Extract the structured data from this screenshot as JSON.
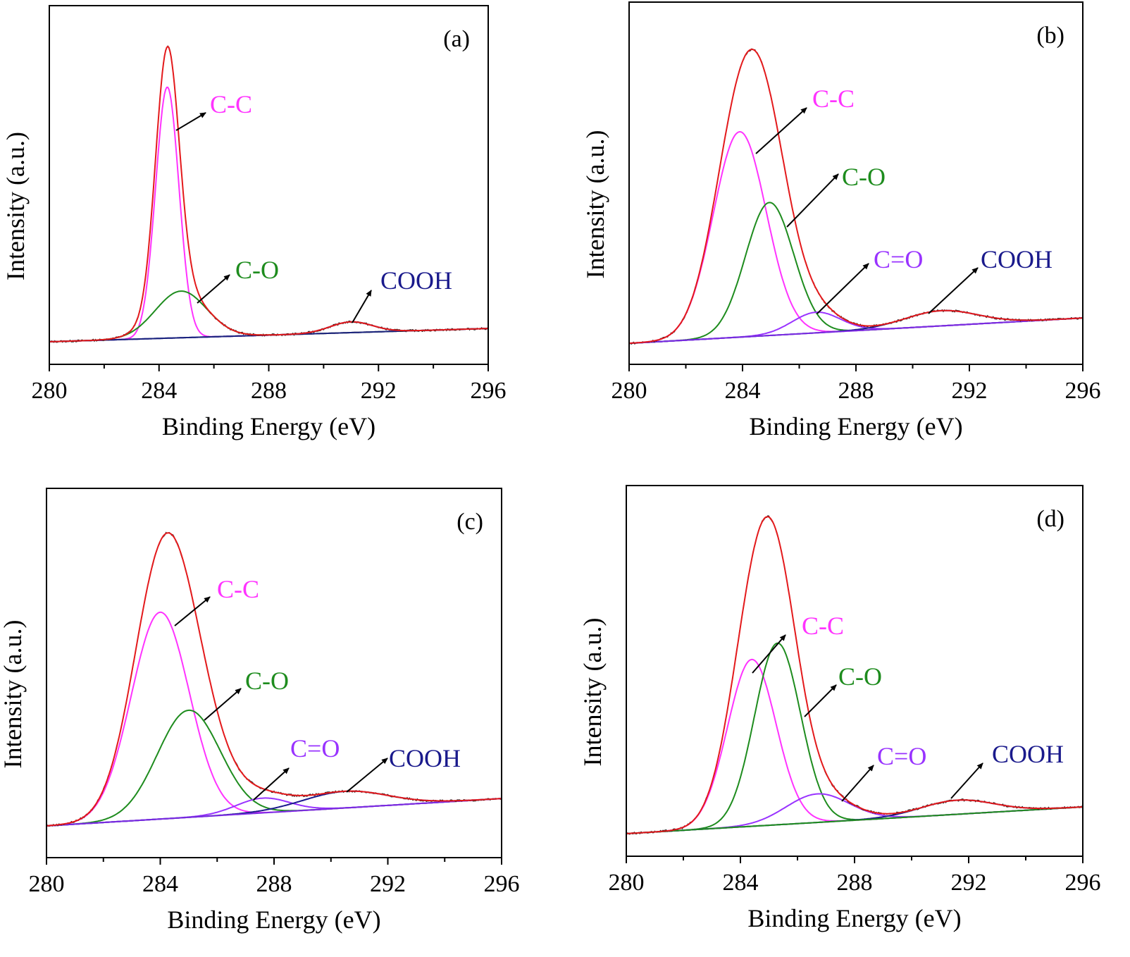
{
  "chart_data": [
    {
      "type": "line",
      "panel_label": "(a)",
      "xlabel": "Binding Energy (eV)",
      "ylabel": "Intensity (a.u.)",
      "xlim": [
        280,
        296
      ],
      "ylim": [
        0,
        1
      ],
      "xticks": [
        280,
        284,
        288,
        292,
        296
      ],
      "xticks_minor": [
        282,
        286,
        290,
        294
      ],
      "grid": false,
      "baseline": {
        "x": [
          280,
          296
        ],
        "y": [
          0.063,
          0.1
        ],
        "color": "#1a237e"
      },
      "envelope": {
        "color": "#e41a1c"
      },
      "components": [
        {
          "name": "C-C",
          "center": 284.3,
          "height": 0.7,
          "fwhm": 1.0,
          "color": "#ff33ff"
        },
        {
          "name": "C-O",
          "center": 284.8,
          "height": 0.13,
          "fwhm": 2.2,
          "color": "#1e8c1e"
        },
        {
          "name": "COOH",
          "center": 291.0,
          "height": 0.03,
          "fwhm": 1.8,
          "color": "#1a1a8c"
        }
      ]
    },
    {
      "type": "line",
      "panel_label": "(b)",
      "xlabel": "Binding Energy (eV)",
      "ylabel": "Intensity (a.u.)",
      "xlim": [
        280,
        296
      ],
      "ylim": [
        0,
        1
      ],
      "xticks": [
        280,
        284,
        288,
        292,
        296
      ],
      "xticks_minor": [
        282,
        286,
        290,
        294
      ],
      "grid": false,
      "baseline": {
        "x": [
          280,
          296
        ],
        "y": [
          0.058,
          0.128
        ],
        "color": "#7a2be2"
      },
      "envelope": {
        "color": "#e41a1c"
      },
      "components": [
        {
          "name": "C-C",
          "center": 283.9,
          "height": 0.567,
          "fwhm": 2.2,
          "color": "#ff33ff"
        },
        {
          "name": "C-O",
          "center": 284.95,
          "height": 0.367,
          "fwhm": 2.0,
          "color": "#1e8c1e"
        },
        {
          "name": "C=O",
          "center": 286.6,
          "height": 0.057,
          "fwhm": 2.0,
          "color": "#9933ff"
        },
        {
          "name": "COOH",
          "center": 291.0,
          "height": 0.042,
          "fwhm": 3.0,
          "color": "#1a1a8c"
        }
      ]
    },
    {
      "type": "line",
      "panel_label": "(c)",
      "xlabel": "Binding Energy (eV)",
      "ylabel": "Intensity (a.u.)",
      "xlim": [
        280,
        296
      ],
      "ylim": [
        0,
        1
      ],
      "xticks": [
        280,
        284,
        288,
        292,
        296
      ],
      "xticks_minor": [
        282,
        286,
        290,
        294
      ],
      "grid": false,
      "baseline": {
        "x": [
          280,
          296
        ],
        "y": [
          0.086,
          0.16
        ],
        "color": "#7a2be2"
      },
      "envelope": {
        "color": "#e41a1c"
      },
      "components": [
        {
          "name": "C-C",
          "center": 284.0,
          "height": 0.56,
          "fwhm": 2.4,
          "color": "#ff33ff"
        },
        {
          "name": "C-O",
          "center": 285.0,
          "height": 0.29,
          "fwhm": 2.6,
          "color": "#1e8c1e"
        },
        {
          "name": "C=O",
          "center": 287.6,
          "height": 0.04,
          "fwhm": 2.2,
          "color": "#9933ff"
        },
        {
          "name": "COOH",
          "center": 290.5,
          "height": 0.045,
          "fwhm": 3.5,
          "color": "#1a1a8c"
        }
      ]
    },
    {
      "type": "line",
      "panel_label": "(d)",
      "xlabel": "Binding Energy (eV)",
      "ylabel": "Intensity (a.u.)",
      "xlim": [
        280,
        296
      ],
      "ylim": [
        0,
        1
      ],
      "xticks": [
        280,
        284,
        288,
        292,
        296
      ],
      "xticks_minor": [
        282,
        286,
        290,
        294
      ],
      "grid": false,
      "baseline": {
        "x": [
          280,
          296
        ],
        "y": [
          0.061,
          0.133
        ],
        "color": "#1e8c1e"
      },
      "envelope": {
        "color": "#e41a1c"
      },
      "components": [
        {
          "name": "C-C",
          "center": 284.4,
          "height": 0.45,
          "fwhm": 2.0,
          "color": "#ff33ff"
        },
        {
          "name": "C-O",
          "center": 285.3,
          "height": 0.49,
          "fwhm": 1.9,
          "color": "#1e8c1e"
        },
        {
          "name": "C=O",
          "center": 286.7,
          "height": 0.077,
          "fwhm": 2.6,
          "color": "#9933ff"
        },
        {
          "name": "COOH",
          "center": 291.6,
          "height": 0.038,
          "fwhm": 3.0,
          "color": "#1a1a8c"
        }
      ]
    }
  ]
}
